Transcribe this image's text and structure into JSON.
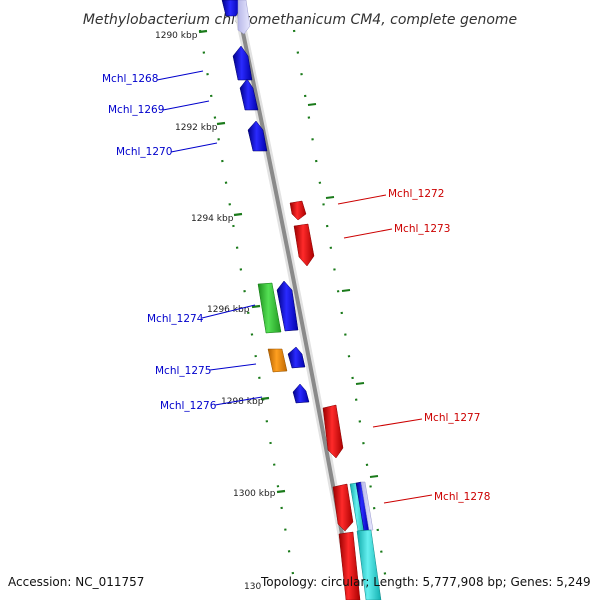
{
  "title": "Methylobacterium chloromethanicum CM4, complete genome",
  "footer": {
    "accession": "Accession: NC_011757",
    "topology": "Topology: circular; Length: 5,777,908 bp; Genes: 5,249",
    "cut_tick": "130"
  },
  "colors": {
    "forward": "#0000ee",
    "reverse": "#ee0000",
    "backbone": "#888888",
    "tick": "#1a7a1a",
    "green_feature": "#33cc33",
    "orange_feature": "#ee8800",
    "cyan_feature": "#22cccc"
  },
  "ticks": [
    {
      "label": "1290 kbp",
      "kbp": 1290
    },
    {
      "label": "1292 kbp",
      "kbp": 1292
    },
    {
      "label": "1294 kbp",
      "kbp": 1294
    },
    {
      "label": "1296 kbp",
      "kbp": 1296
    },
    {
      "label": "1298 kbp",
      "kbp": 1298
    },
    {
      "label": "1300 kbp",
      "kbp": 1300
    }
  ],
  "genes_forward": [
    {
      "label": "Mchl_1268"
    },
    {
      "label": "Mchl_1269"
    },
    {
      "label": "Mchl_1270"
    },
    {
      "label": "Mchl_1274"
    },
    {
      "label": "Mchl_1275"
    },
    {
      "label": "Mchl_1276"
    }
  ],
  "genes_reverse": [
    {
      "label": "Mchl_1272"
    },
    {
      "label": "Mchl_1273"
    },
    {
      "label": "Mchl_1277"
    },
    {
      "label": "Mchl_1278"
    }
  ]
}
